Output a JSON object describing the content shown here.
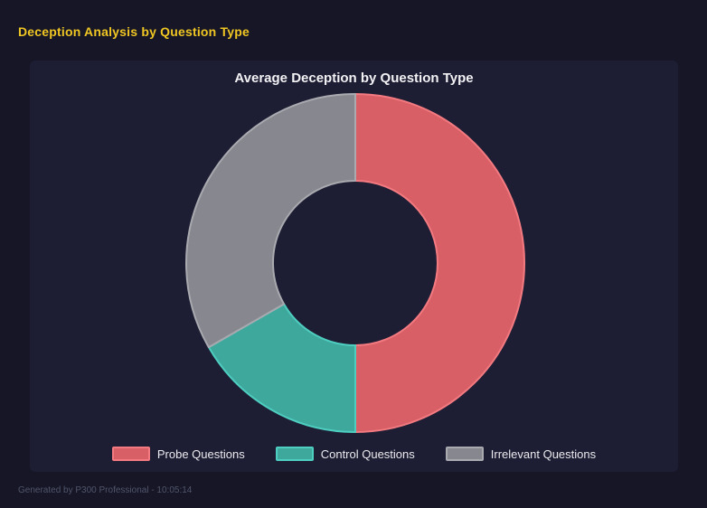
{
  "page": {
    "title": "Deception Analysis by Question Type",
    "footer": "Generated by P300 Professional - 10:05:14"
  },
  "colors": {
    "page_bg": "#161627",
    "panel_bg": "#1d1d33",
    "accent_yellow": "#f0c622",
    "title_text": "#f2f2f5",
    "legend_text": "#eaeaef",
    "footer_text": "#51566a"
  },
  "chart_data": {
    "type": "pie",
    "variant": "doughnut",
    "title": "Average Deception by Question Type",
    "categories": [
      "Probe Questions",
      "Control Questions",
      "Irrelevant Questions"
    ],
    "values": [
      50,
      16.7,
      33.3
    ],
    "values_note": "percent share of ring, estimated from slice angles (180deg, 60deg, 120deg)",
    "slice_colors": [
      "#d85f65",
      "#3fa89d",
      "#87878f"
    ],
    "slice_border_colors": [
      "#f37a80",
      "#4ecec0",
      "#a9a9b0"
    ],
    "start_angle_deg": 0,
    "direction": "clockwise",
    "cutout": "49%",
    "legend_position": "bottom",
    "grid": false
  }
}
